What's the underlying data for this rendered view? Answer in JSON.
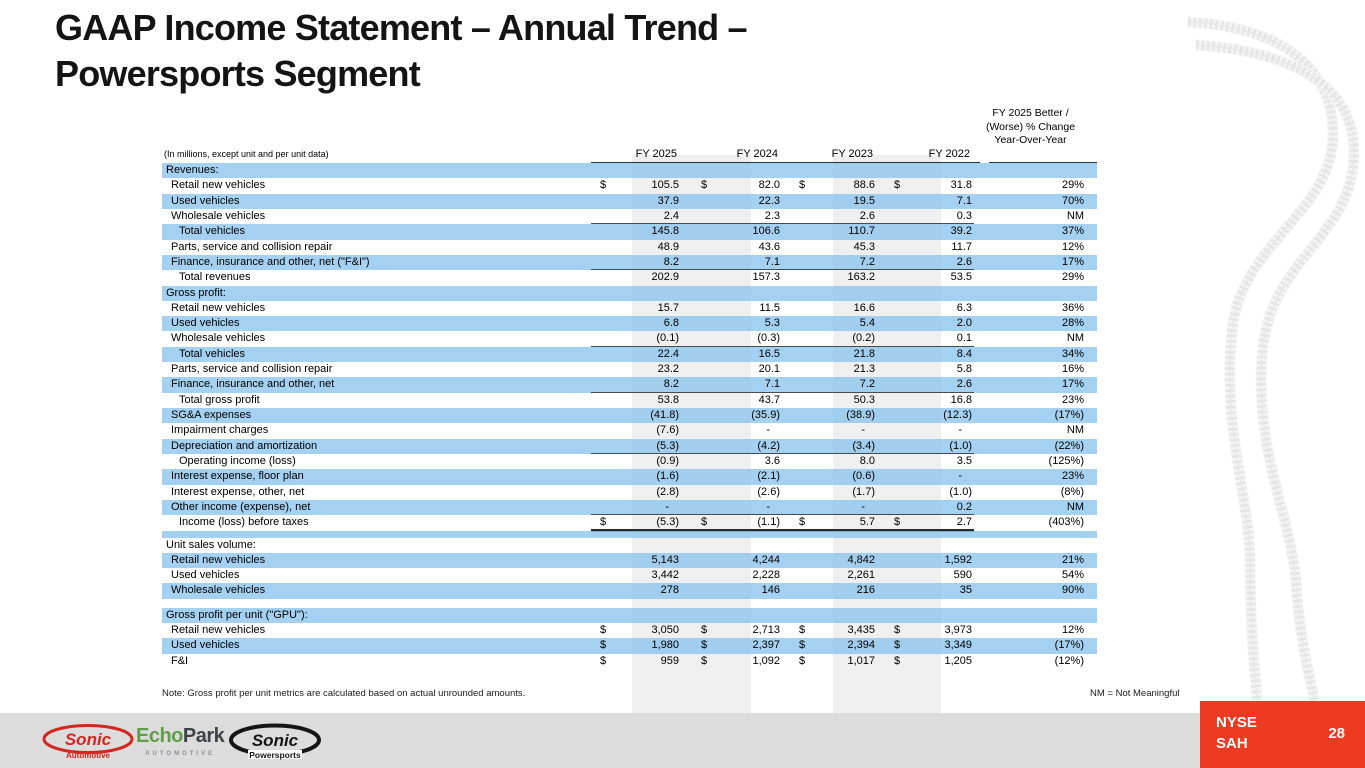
{
  "slide": {
    "title_line1": "GAAP Income Statement – Annual Trend –",
    "title_line2": "Powersports Segment"
  },
  "table": {
    "units_note": "(In millions, except unit and per unit data)",
    "col_headers": [
      "FY 2025",
      "FY 2024",
      "FY 2023",
      "FY 2022"
    ],
    "change_header_lines": [
      "FY 2025 Better /",
      "(Worse) % Change",
      "Year-Over-Year"
    ],
    "rows": [
      {
        "type": "section",
        "shade": true,
        "label": "Revenues:"
      },
      {
        "type": "item",
        "shade": false,
        "dollar": true,
        "label": "Retail new vehicles",
        "v": [
          "105.5",
          "82.0",
          "88.6",
          "31.8",
          "29%"
        ]
      },
      {
        "type": "item",
        "shade": true,
        "label": "Used vehicles",
        "v": [
          "37.9",
          "22.3",
          "19.5",
          "7.1",
          "70%"
        ]
      },
      {
        "type": "item",
        "shade": false,
        "rule": true,
        "label": "Wholesale vehicles",
        "v": [
          "2.4",
          "2.3",
          "2.6",
          "0.3",
          "NM"
        ]
      },
      {
        "type": "total",
        "shade": true,
        "label": "Total vehicles",
        "v": [
          "145.8",
          "106.6",
          "110.7",
          "39.2",
          "37%"
        ]
      },
      {
        "type": "item",
        "shade": false,
        "label": "Parts, service and collision repair",
        "v": [
          "48.9",
          "43.6",
          "45.3",
          "11.7",
          "12%"
        ]
      },
      {
        "type": "item",
        "shade": true,
        "rule": true,
        "label": "Finance, insurance and other, net (\"F&I\")",
        "v": [
          "8.2",
          "7.1",
          "7.2",
          "2.6",
          "17%"
        ]
      },
      {
        "type": "total",
        "shade": false,
        "label": "Total revenues",
        "v": [
          "202.9",
          "157.3",
          "163.2",
          "53.5",
          "29%"
        ]
      },
      {
        "type": "section",
        "shade": true,
        "label": "Gross profit:"
      },
      {
        "type": "item",
        "shade": false,
        "label": "Retail new vehicles",
        "v": [
          "15.7",
          "11.5",
          "16.6",
          "6.3",
          "36%"
        ]
      },
      {
        "type": "item",
        "shade": true,
        "label": "Used vehicles",
        "v": [
          "6.8",
          "5.3",
          "5.4",
          "2.0",
          "28%"
        ]
      },
      {
        "type": "item",
        "shade": false,
        "rule": true,
        "label": "Wholesale vehicles",
        "v": [
          "(0.1)",
          "(0.3)",
          "(0.2)",
          "0.1",
          "NM"
        ]
      },
      {
        "type": "total",
        "shade": true,
        "label": "Total vehicles",
        "v": [
          "22.4",
          "16.5",
          "21.8",
          "8.4",
          "34%"
        ]
      },
      {
        "type": "item",
        "shade": false,
        "label": "Parts, service and collision repair",
        "v": [
          "23.2",
          "20.1",
          "21.3",
          "5.8",
          "16%"
        ]
      },
      {
        "type": "item",
        "shade": true,
        "rule": true,
        "label": "Finance, insurance and other, net",
        "v": [
          "8.2",
          "7.1",
          "7.2",
          "2.6",
          "17%"
        ]
      },
      {
        "type": "total",
        "shade": false,
        "label": "Total gross profit",
        "v": [
          "53.8",
          "43.7",
          "50.3",
          "16.8",
          "23%"
        ]
      },
      {
        "type": "item",
        "shade": true,
        "label": "SG&A expenses",
        "v": [
          "(41.8)",
          "(35.9)",
          "(38.9)",
          "(12.3)",
          "(17%)"
        ]
      },
      {
        "type": "item",
        "shade": false,
        "label": "Impairment charges",
        "v": [
          "(7.6)",
          "-",
          "-",
          "-",
          "NM"
        ]
      },
      {
        "type": "item",
        "shade": true,
        "rule": true,
        "label": "Depreciation and amortization",
        "v": [
          "(5.3)",
          "(4.2)",
          "(3.4)",
          "(1.0)",
          "(22%)"
        ]
      },
      {
        "type": "total",
        "shade": false,
        "label": "Operating income (loss)",
        "v": [
          "(0.9)",
          "3.6",
          "8.0",
          "3.5",
          "(125%)"
        ]
      },
      {
        "type": "item",
        "shade": true,
        "label": "Interest expense, floor plan",
        "v": [
          "(1.6)",
          "(2.1)",
          "(0.6)",
          "-",
          "23%"
        ]
      },
      {
        "type": "item",
        "shade": false,
        "label": "Interest expense, other, net",
        "v": [
          "(2.8)",
          "(2.6)",
          "(1.7)",
          "(1.0)",
          "(8%)"
        ]
      },
      {
        "type": "item",
        "shade": true,
        "rule": true,
        "label": "Other income (expense), net",
        "v": [
          "-",
          "-",
          "-",
          "0.2",
          "NM"
        ]
      },
      {
        "type": "total",
        "shade": false,
        "dollar": true,
        "drule": true,
        "label": "Income (loss) before taxes",
        "v": [
          "(5.3)",
          "(1.1)",
          "5.7",
          "2.7",
          "(403%)"
        ]
      },
      {
        "type": "spacer",
        "shade": true,
        "h": 7
      },
      {
        "type": "section",
        "shade": false,
        "label": "Unit sales volume:"
      },
      {
        "type": "item",
        "shade": true,
        "label": "Retail new vehicles",
        "v": [
          "5,143",
          "4,244",
          "4,842",
          "1,592",
          "21%"
        ]
      },
      {
        "type": "item",
        "shade": false,
        "label": "Used vehicles",
        "v": [
          "3,442",
          "2,228",
          "2,261",
          "590",
          "54%"
        ]
      },
      {
        "type": "item",
        "shade": true,
        "label": "Wholesale vehicles",
        "v": [
          "278",
          "146",
          "216",
          "35",
          "90%"
        ]
      },
      {
        "type": "spacer",
        "shade": false,
        "h": 9
      },
      {
        "type": "section",
        "shade": true,
        "label": "Gross profit per unit (\"GPU\"):"
      },
      {
        "type": "item",
        "shade": false,
        "dollar": true,
        "label": "Retail new vehicles",
        "v": [
          "3,050",
          "2,713",
          "3,435",
          "3,973",
          "12%"
        ]
      },
      {
        "type": "item",
        "shade": true,
        "dollar": true,
        "label": "Used vehicles",
        "v": [
          "1,980",
          "2,397",
          "2,394",
          "3,349",
          "(17%)"
        ]
      },
      {
        "type": "item",
        "shade": false,
        "dollar": true,
        "label": "F&I",
        "v": [
          "959",
          "1,092",
          "1,017",
          "1,205",
          "(12%)"
        ]
      }
    ],
    "footnote": "Note: Gross profit per unit metrics are calculated based on actual unrounded amounts.",
    "nm_note": "NM = Not Meaningful"
  },
  "footer": {
    "sonic_auto": {
      "name": "Sonic",
      "sub": "Automotive"
    },
    "echopark": {
      "part1": "Echo",
      "part2": "Park",
      "sub": "AUTOMOTIVE"
    },
    "sonic_power": {
      "name": "Sonic",
      "sub": "Powersports"
    },
    "ticker_line1": "NYSE",
    "ticker_line2": "SAH",
    "page_number": "28"
  },
  "colors": {
    "row_stripe_blue": "#a8d3f1",
    "column_band_gray": "#efefef",
    "footer_bar_gray": "#dcdcdc",
    "footer_red": "#ee3a21",
    "sonic_red": "#d0281e",
    "echopark_green": "#5f9e45",
    "title_text": "#141414"
  }
}
